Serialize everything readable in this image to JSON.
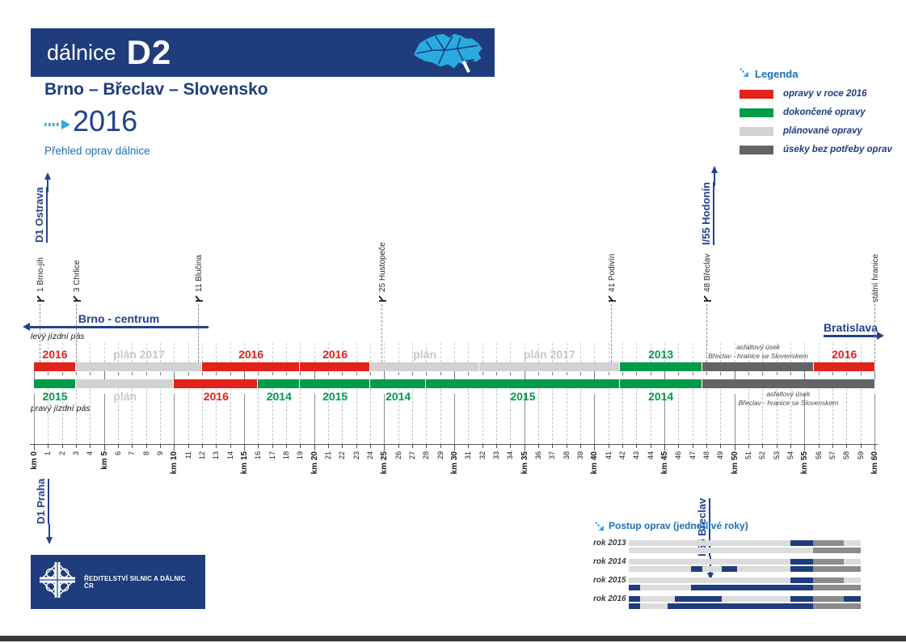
{
  "header": {
    "brand": "dálnice",
    "code": "D2",
    "map_icon": "czech-republic-highway-map"
  },
  "title": {
    "route": "Brno – Břeclav – Slovensko",
    "year": "2016",
    "subtitle": "Přehled oprav dálnice"
  },
  "legend": {
    "title": "Legenda",
    "items": [
      {
        "label": "opravy v roce 2016",
        "color": "#E2231A",
        "status": "opravy2016"
      },
      {
        "label": "dokončené opravy",
        "color": "#009B4A",
        "status": "done"
      },
      {
        "label": "plánované opravy",
        "color": "#D2D2D2",
        "status": "plan"
      },
      {
        "label": "úseky bez potřeby oprav",
        "color": "#636466",
        "status": "noneed"
      }
    ]
  },
  "directions": {
    "top_left": "D1 Ostrava",
    "top_right": "I/55 Hodonín",
    "bottom_left": "D1 Praha",
    "bottom_right": "I/55 Břeclav",
    "left_arrow": "Brno - centrum",
    "right_arrow": "Bratislava"
  },
  "footer": {
    "organization": "ŘEDITELSTVÍ SILNIC A DÁLNIC ČR"
  },
  "chart_data": [
    {
      "type": "bar",
      "title": "Přehled oprav dálnice D2",
      "xlabel": "km",
      "xlim": [
        0,
        60
      ],
      "x_tick_step": 1,
      "x_major_step": 5,
      "x_major_prefix": "km",
      "grid": true,
      "status_colors": {
        "opravy2016": "#E2231A",
        "done": "#009B4A",
        "plan": "#D2D2D2",
        "noneed": "#636466"
      },
      "label_colors": {
        "opravy2016": "#E2231A",
        "done": "#009B4A",
        "plan": "#C8C8C8",
        "noneed": "#4a4a4a"
      },
      "exits": [
        {
          "km": 0.4,
          "label": "1  Brno-jih",
          "icon": true
        },
        {
          "km": 3.0,
          "label": "3  Chrlice",
          "icon": true
        },
        {
          "km": 11.7,
          "label": "11  Blučina",
          "icon": true
        },
        {
          "km": 24.8,
          "label": "25  Hustopeče",
          "icon": true
        },
        {
          "km": 41.2,
          "label": "41  Podivín",
          "icon": true
        },
        {
          "km": 48.0,
          "label": "48  Břeclav",
          "icon": true
        },
        {
          "km": 60.0,
          "label": "státní hranice",
          "icon": false
        }
      ],
      "lanes": [
        {
          "name": "levý jízdní pás",
          "side": "top",
          "segments": [
            {
              "from": 0,
              "to": 3,
              "status": "opravy2016",
              "label": "2016"
            },
            {
              "from": 3,
              "to": 12,
              "status": "plan",
              "label": "plán 2017"
            },
            {
              "from": 12,
              "to": 19,
              "status": "opravy2016",
              "label": "2016"
            },
            {
              "from": 19,
              "to": 24,
              "status": "opravy2016",
              "label": "2016"
            },
            {
              "from": 24,
              "to": 31.8,
              "status": "plan",
              "label": "plán"
            },
            {
              "from": 31.8,
              "to": 41.8,
              "status": "plan",
              "label": "plán 2017"
            },
            {
              "from": 41.8,
              "to": 47.7,
              "status": "done",
              "label": "2013"
            },
            {
              "from": 47.7,
              "to": 55.7,
              "status": "noneed",
              "label_lines": [
                "asfaltový úsek",
                "Břeclav - hranice se Slovenskem"
              ]
            },
            {
              "from": 55.7,
              "to": 60,
              "status": "opravy2016",
              "label": "2016"
            }
          ]
        },
        {
          "name": "pravý jízdní pás",
          "side": "bottom",
          "segments": [
            {
              "from": 0,
              "to": 3,
              "status": "done",
              "label": "2015"
            },
            {
              "from": 3,
              "to": 10,
              "status": "plan",
              "label": "plán"
            },
            {
              "from": 10,
              "to": 16,
              "status": "opravy2016",
              "label": "2016"
            },
            {
              "from": 16,
              "to": 19,
              "status": "done",
              "label": "2014"
            },
            {
              "from": 19,
              "to": 24,
              "status": "done",
              "label": "2015"
            },
            {
              "from": 24,
              "to": 28,
              "status": "done",
              "label": "2014"
            },
            {
              "from": 28,
              "to": 41.8,
              "status": "done",
              "label": "2015"
            },
            {
              "from": 41.8,
              "to": 47.7,
              "status": "done",
              "label": "2014"
            },
            {
              "from": 47.7,
              "to": 60,
              "status": "noneed",
              "label_lines": [
                "asfaltový úsek",
                "Břeclav - hranice se Slovenskem"
              ]
            }
          ]
        }
      ]
    },
    {
      "type": "bar",
      "title": "Postup oprav (jednotlivé roky)",
      "xlim": [
        0,
        60
      ],
      "legend_position": "none",
      "status_colors": {
        "done": "#1F3D7C",
        "todo": "#DCDCDC",
        "noneed": "#8C8C8C"
      },
      "rows": [
        {
          "label": "rok 2013",
          "levy": [
            [
              0,
              41.8,
              "todo"
            ],
            [
              41.8,
              47.7,
              "done"
            ],
            [
              47.7,
              55.7,
              "noneed"
            ],
            [
              55.7,
              60,
              "todo"
            ]
          ],
          "pravy": [
            [
              0,
              47.7,
              "todo"
            ],
            [
              47.7,
              60,
              "noneed"
            ]
          ]
        },
        {
          "label": "rok 2014",
          "levy": [
            [
              0,
              41.8,
              "todo"
            ],
            [
              41.8,
              47.7,
              "done"
            ],
            [
              47.7,
              55.7,
              "noneed"
            ],
            [
              55.7,
              60,
              "todo"
            ]
          ],
          "pravy": [
            [
              0,
              16,
              "todo"
            ],
            [
              16,
              19,
              "done"
            ],
            [
              19,
              24,
              "todo"
            ],
            [
              24,
              28,
              "done"
            ],
            [
              28,
              41.8,
              "todo"
            ],
            [
              41.8,
              47.7,
              "done"
            ],
            [
              47.7,
              60,
              "noneed"
            ]
          ]
        },
        {
          "label": "rok 2015",
          "levy": [
            [
              0,
              41.8,
              "todo"
            ],
            [
              41.8,
              47.7,
              "done"
            ],
            [
              47.7,
              55.7,
              "noneed"
            ],
            [
              55.7,
              60,
              "todo"
            ]
          ],
          "pravy": [
            [
              0,
              3,
              "done"
            ],
            [
              3,
              16,
              "todo"
            ],
            [
              16,
              47.7,
              "done"
            ],
            [
              47.7,
              60,
              "noneed"
            ]
          ]
        },
        {
          "label": "rok 2016",
          "levy": [
            [
              0,
              3,
              "done"
            ],
            [
              3,
              12,
              "todo"
            ],
            [
              12,
              24,
              "done"
            ],
            [
              24,
              41.8,
              "todo"
            ],
            [
              41.8,
              47.7,
              "done"
            ],
            [
              47.7,
              55.7,
              "noneed"
            ],
            [
              55.7,
              60,
              "done"
            ]
          ],
          "pravy": [
            [
              0,
              3,
              "done"
            ],
            [
              3,
              10,
              "todo"
            ],
            [
              10,
              47.7,
              "done"
            ],
            [
              47.7,
              60,
              "noneed"
            ]
          ]
        }
      ]
    }
  ]
}
